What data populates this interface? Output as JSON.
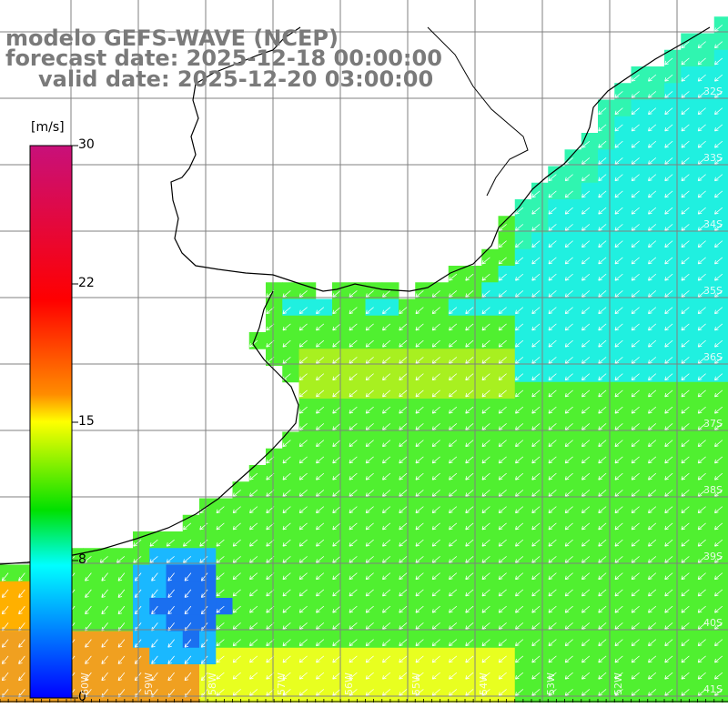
{
  "title": {
    "line1": "modelo GEFS-WAVE (NCEP)",
    "line2": "forecast date: 2025-12-18 00:00:00",
    "line3": "valid date: 2025-12-20 03:00:00"
  },
  "colorbar": {
    "unit": "[m/s]",
    "ticks": [
      "30",
      "22",
      "15",
      "8",
      "0"
    ],
    "colors": [
      "#c8107a",
      "#ff0000",
      "#ff8c00",
      "#ffff00",
      "#00e000",
      "#00ffff",
      "#0000ff"
    ]
  },
  "latitude_labels": [
    "32S",
    "33S",
    "34S",
    "35S",
    "36S",
    "37S",
    "38S",
    "39S",
    "40S",
    "41S"
  ],
  "longitude_labels": [
    "60W",
    "59W",
    "58W",
    "57W",
    "56W",
    "55W",
    "54W",
    "53W",
    "52W"
  ],
  "colors": {
    "land": "#ffffff",
    "coast": "#000000",
    "grid": "#808080",
    "arrow": "#ffffff"
  }
}
